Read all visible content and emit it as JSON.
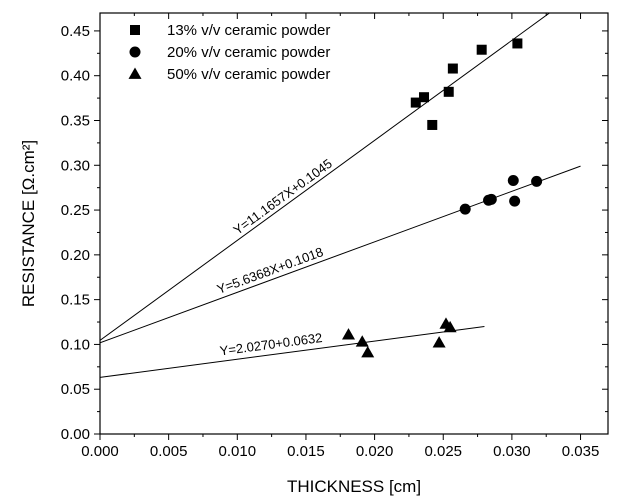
{
  "chart_data": {
    "type": "scatter",
    "xlabel": "THICKNESS [cm]",
    "ylabel": "RESISTANCE [Ω.cm²]",
    "xlim": [
      0.0,
      0.037
    ],
    "ylim": [
      0.0,
      0.47
    ],
    "xticks": [
      "0.000",
      "0.005",
      "0.010",
      "0.015",
      "0.020",
      "0.025",
      "0.030",
      "0.035"
    ],
    "yticks": [
      "0.00",
      "0.05",
      "0.10",
      "0.15",
      "0.20",
      "0.25",
      "0.30",
      "0.35",
      "0.40",
      "0.45"
    ],
    "legend_position": "top-left",
    "series": [
      {
        "name": "13% v/v ceramic powder",
        "marker": "square",
        "points": [
          [
            0.023,
            0.37
          ],
          [
            0.0236,
            0.376
          ],
          [
            0.0242,
            0.345
          ],
          [
            0.0254,
            0.382
          ],
          [
            0.0257,
            0.408
          ],
          [
            0.0278,
            0.429
          ],
          [
            0.0304,
            0.436
          ]
        ],
        "fit": {
          "label": "Y=11.1657X+0.1045",
          "slope": 11.1657,
          "intercept": 0.1045,
          "x_range": [
            0.0,
            0.0335
          ]
        }
      },
      {
        "name": "20% v/v ceramic powder",
        "marker": "circle",
        "points": [
          [
            0.0266,
            0.251
          ],
          [
            0.0283,
            0.261
          ],
          [
            0.0285,
            0.262
          ],
          [
            0.0301,
            0.283
          ],
          [
            0.0302,
            0.26
          ],
          [
            0.0318,
            0.282
          ]
        ],
        "fit": {
          "label": "Y=5.6368X+0.1018",
          "slope": 5.6368,
          "intercept": 0.1018,
          "x_range": [
            0.0,
            0.035
          ]
        }
      },
      {
        "name": "50% v/v ceramic powder",
        "marker": "triangle",
        "points": [
          [
            0.0181,
            0.111
          ],
          [
            0.0191,
            0.103
          ],
          [
            0.0195,
            0.091
          ],
          [
            0.0247,
            0.102
          ],
          [
            0.0252,
            0.123
          ],
          [
            0.0255,
            0.119
          ]
        ],
        "fit": {
          "label": "Y=2.0270+0.0632",
          "slope": 2.027,
          "intercept": 0.0632,
          "x_range": [
            0.0,
            0.028
          ]
        }
      }
    ]
  }
}
